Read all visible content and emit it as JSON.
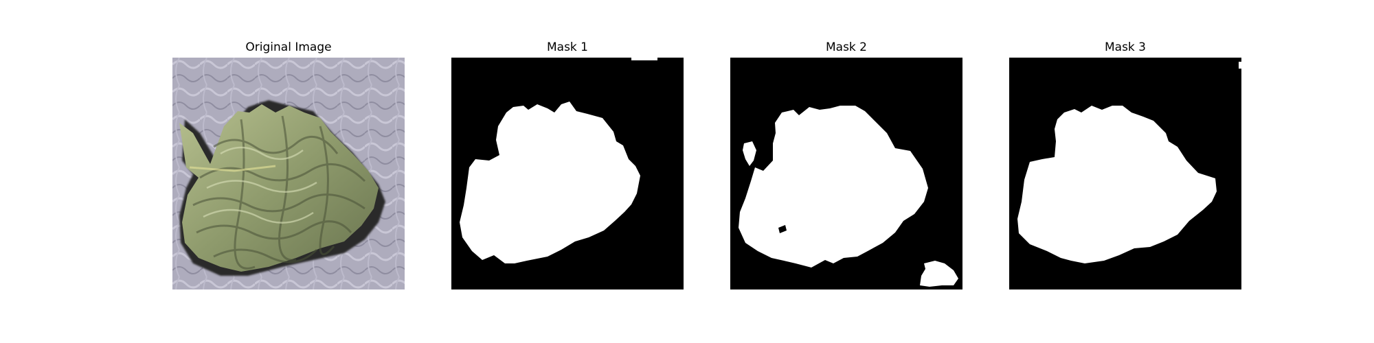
{
  "figure": {
    "panels": [
      {
        "title": "Original Image"
      },
      {
        "title": "Mask 1"
      },
      {
        "title": "Mask 2"
      },
      {
        "title": "Mask 3"
      }
    ]
  },
  "colors": {
    "background": "#ffffff",
    "mask_background": "#000000",
    "mask_foreground": "#ffffff",
    "fabric": "#a9a7b8",
    "leaf": "#8f9b6e",
    "leaf_dark": "#3d4330"
  }
}
